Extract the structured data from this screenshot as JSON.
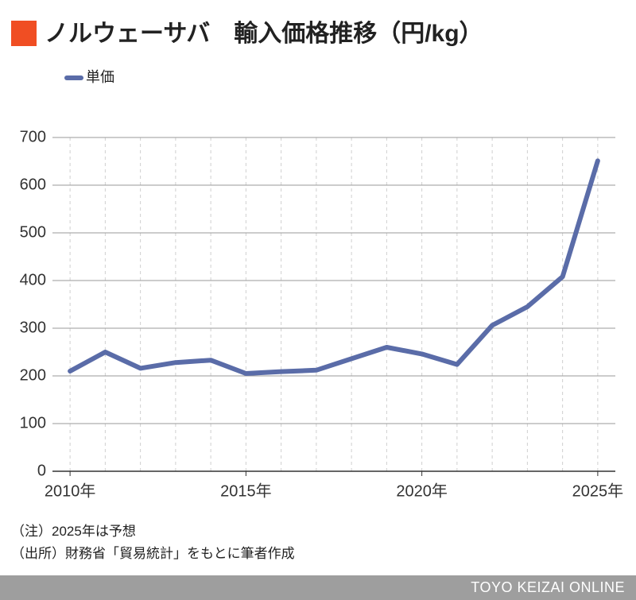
{
  "chart_data": {
    "type": "line",
    "title": "ノルウェーサバ　輸入価格推移（円/kg）",
    "x": [
      2010,
      2011,
      2012,
      2013,
      2014,
      2015,
      2016,
      2017,
      2018,
      2019,
      2020,
      2021,
      2022,
      2023,
      2024,
      2025
    ],
    "series": [
      {
        "name": "単価",
        "color": "#5a6ca8",
        "values": [
          210,
          250,
          216,
          228,
          233,
          205,
          209,
          212,
          236,
          260,
          246,
          224,
          306,
          345,
          408,
          651
        ]
      }
    ],
    "xlim": [
      2009.5,
      2025.5
    ],
    "xticks": [
      {
        "value": 2010,
        "label": "2010年"
      },
      {
        "value": 2015,
        "label": "2015年"
      },
      {
        "value": 2020,
        "label": "2020年"
      },
      {
        "value": 2025,
        "label": "2025年"
      }
    ],
    "ylim": [
      0,
      700
    ],
    "yticks": [
      0,
      100,
      200,
      300,
      400,
      500,
      600,
      700
    ],
    "grid": true,
    "notes": [
      "（注）2025年は予想",
      "（出所）財務省「貿易統計」をもとに筆者作成"
    ],
    "source": "TOYO KEIZAI ONLINE"
  }
}
